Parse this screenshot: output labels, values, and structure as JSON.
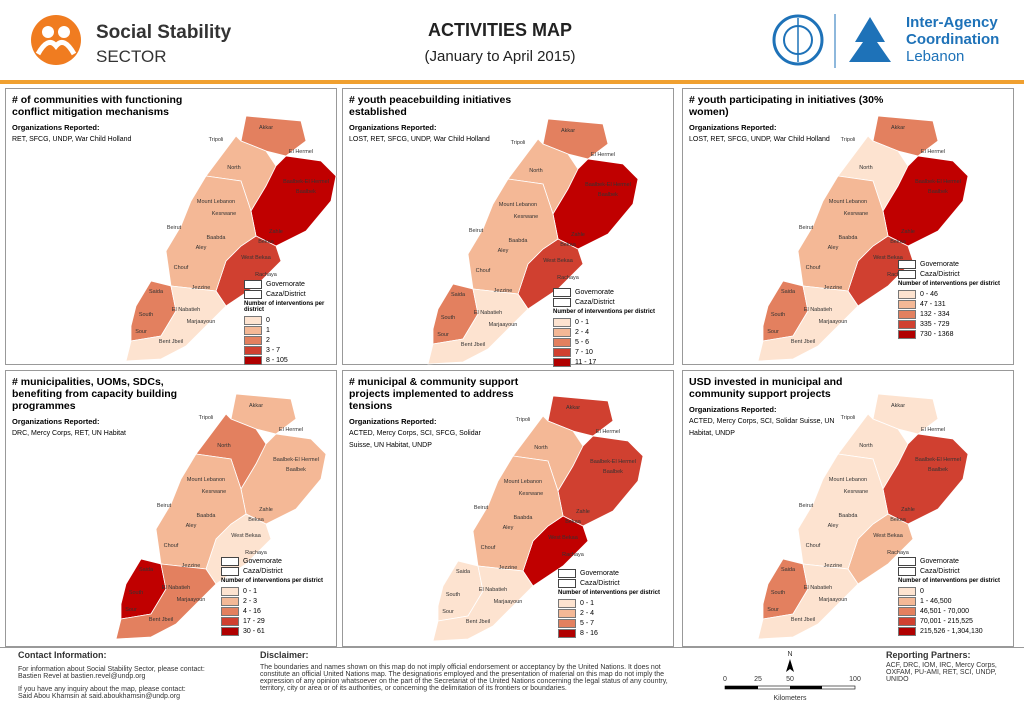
{
  "header": {
    "sector_name": "Social Stability",
    "sector_label": "SECTOR",
    "title": "ACTIVITIES MAP",
    "subtitle": "(January to April 2015)",
    "coordination": [
      "Inter-Agency",
      "Coordination",
      "Lebanon"
    ]
  },
  "shared": {
    "org_label": "Organizations Reported:",
    "legend_keys": [
      "Governorate",
      "Caza/District"
    ],
    "legend_title": "Number of interventions per district",
    "map_labels": [
      "Akkar",
      "Tripoli",
      "El Hermel",
      "North",
      "Baalbek-El Hermel",
      "Baalbek",
      "Mount Lebanon",
      "Kesrwane",
      "Beirut",
      "Baabda",
      "Aley",
      "Zahle",
      "Bekaa",
      "West Bekaa",
      "Chouf",
      "Rachaya",
      "Jezzine",
      "Saida",
      "South",
      "El Nabatieh",
      "Marjaayoun",
      "Sour",
      "Bent Jbeil"
    ]
  },
  "panels": [
    {
      "title": "# of communities with functioning conflict mitigation mechanisms",
      "orgs": "RET, SFCG, UNDP, War Child Holland",
      "legend": [
        "0",
        "1",
        "2",
        "3 - 7",
        "8 - 105"
      ]
    },
    {
      "title": "# youth peacebuilding initiatives established",
      "orgs": "LOST, RET, SFCG, UNDP, War Child Holland",
      "legend": [
        "0 - 1",
        "2 - 4",
        "5 - 6",
        "7 - 10",
        "11 - 17"
      ]
    },
    {
      "title": "# youth participating in initiatives (30% women)",
      "orgs": "LOST, RET, SFCG, UNDP, War Child Holland",
      "legend": [
        "0 - 46",
        "47 - 131",
        "132 - 334",
        "335 - 729",
        "730 - 1368"
      ]
    },
    {
      "title": "# municipalities, UOMs, SDCs, benefiting from capacity building programmes",
      "orgs": "DRC, Mercy Corps, RET, UN Habitat",
      "legend": [
        "0 - 1",
        "2 - 3",
        "4 - 16",
        "17 - 29",
        "30 - 61"
      ]
    },
    {
      "title": "# municipal & community support projects implemented to address tensions",
      "orgs": "ACTED, Mercy Corps, SCI, SFCG, Solidar Suisse, UN Habitat, UNDP",
      "legend": [
        "0 - 1",
        "2 - 4",
        "5 - 7",
        "8 - 16"
      ]
    },
    {
      "title": "USD invested in municipal and community support projects",
      "orgs": "ACTED, Mercy Corps, SCI, Solidar Suisse, UN Habitat, UNDP",
      "legend": [
        "0",
        "1 - 46,500",
        "46,501 - 70,000",
        "70,001 - 215,525",
        "215,526 - 1,304,130"
      ]
    }
  ],
  "footer": {
    "contact_title": "Contact Information:",
    "contact_lines": [
      "For information about Social Stability Sector, please contact:",
      "Bastien Revel at bastien.revel@undp.org",
      "If you have any inquiry about the map, please contact:",
      "Said Abou Khamsin at said.aboukhamsin@undp.org"
    ],
    "disclaimer_title": "Disclaimer:",
    "disclaimer": "The boundaries and names shown on this map do not imply official endorsement or acceptancy by the United Nations. It does not constitute an official United Nations map. The designations employed and the presentation of material on this map do not imply the expression of any opinion whatsoever on the part of the Secretariat of the United Nations concerning the legal status of any country, territory, city or area or of its authorities, or concerning the delimitation of its frontiers or boundaries.",
    "north": "N",
    "scale": [
      "0",
      "25",
      "50",
      "100"
    ],
    "scale_unit": "Kilometers",
    "partners_title": "Reporting Partners:",
    "partners": "ACF, DRC, IOM, IRC, Mercy Corps, OXFAM, PU-AMI, RET, SCI, UNDP, UNIDO"
  }
}
